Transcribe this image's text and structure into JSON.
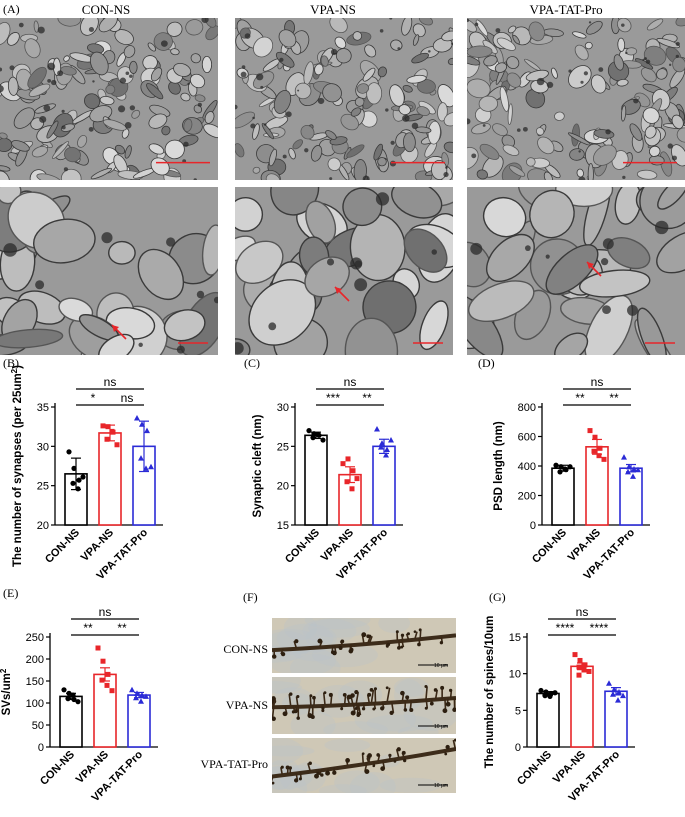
{
  "panel_labels": {
    "A": "(A)",
    "B": "(B)",
    "C": "(C)",
    "D": "(D)",
    "E": "(E)",
    "F": "(F)",
    "G": "(G)"
  },
  "groups": [
    "CON-NS",
    "VPA-NS",
    "VPA-TAT-Pro"
  ],
  "colors": {
    "con": "#000000",
    "vpa": "#e8262a",
    "tat": "#2b2bd6"
  },
  "micrographs": {
    "row1_scale_color": "#e8262a",
    "row2_arrow_color": "#e8262a"
  },
  "light_micrographs": {
    "labels": [
      "CON-NS",
      "VPA-NS",
      "VPA-TAT-Pro"
    ],
    "scale_text": [
      "10 μm",
      "10 μm",
      "10 μm"
    ]
  },
  "chart_data": [
    {
      "id": "B",
      "type": "bar",
      "categories": [
        "CON-NS",
        "VPA-NS",
        "VPA-TAT-Pro"
      ],
      "values": [
        26.5,
        31.7,
        30.0
      ],
      "errors": [
        2.0,
        1.0,
        3.2
      ],
      "points": [
        [
          29.3,
          27.2,
          25.7,
          25.3,
          24.6,
          26.1
        ],
        [
          32.6,
          32.5,
          31.8,
          30.9,
          31.9,
          30.2
        ],
        [
          33.6,
          32.8,
          32.0,
          28.5,
          27.2,
          27.4
        ]
      ],
      "ylabel": "The number of synapses (per 25um",
      "ylabel_sup": "2",
      "ylabel_end": ")",
      "ylim": [
        20,
        35
      ],
      "yticks": [
        20,
        25,
        30,
        35
      ],
      "sig": [
        {
          "from": 0,
          "to": 1,
          "text": "*",
          "level": 1
        },
        {
          "from": 1,
          "to": 2,
          "text": "ns",
          "level": 1
        },
        {
          "from": 0,
          "to": 2,
          "text": "ns",
          "level": 2
        }
      ]
    },
    {
      "id": "C",
      "type": "bar",
      "categories": [
        "CON-NS",
        "VPA-NS",
        "VPA-TAT-Pro"
      ],
      "values": [
        26.4,
        21.4,
        25.0
      ],
      "errors": [
        0.4,
        1.0,
        0.9
      ],
      "points": [
        [
          27.0,
          26.6,
          26.4,
          26.1,
          26.5,
          25.8
        ],
        [
          22.8,
          23.4,
          21.9,
          20.5,
          19.6,
          20.9
        ],
        [
          27.2,
          25.4,
          24.6,
          24.9,
          23.9,
          25.8
        ]
      ],
      "ylabel": "Synaptic cleft (nm)",
      "ylim": [
        15,
        30
      ],
      "yticks": [
        15,
        20,
        25,
        30
      ],
      "sig": [
        {
          "from": 0,
          "to": 1,
          "text": "***",
          "level": 1
        },
        {
          "from": 1,
          "to": 2,
          "text": "**",
          "level": 1
        },
        {
          "from": 0,
          "to": 2,
          "text": "ns",
          "level": 2
        }
      ]
    },
    {
      "id": "D",
      "type": "bar",
      "categories": [
        "CON-NS",
        "VPA-NS",
        "VPA-TAT-Pro"
      ],
      "values": [
        385,
        530,
        385
      ],
      "errors": [
        20,
        50,
        25
      ],
      "points": [
        [
          405,
          395,
          375,
          360,
          380,
          395
        ],
        [
          640,
          595,
          520,
          500,
          470,
          445
        ],
        [
          460,
          395,
          380,
          360,
          330,
          375
        ]
      ],
      "ylabel": "PSD length (nm)",
      "ylim": [
        0,
        800
      ],
      "yticks": [
        0,
        200,
        400,
        600,
        800
      ],
      "sig": [
        {
          "from": 0,
          "to": 1,
          "text": "**",
          "level": 1
        },
        {
          "from": 1,
          "to": 2,
          "text": "**",
          "level": 1
        },
        {
          "from": 0,
          "to": 2,
          "text": "ns",
          "level": 2
        }
      ]
    },
    {
      "id": "E",
      "type": "bar",
      "categories": [
        "CON-NS",
        "VPA-NS",
        "VPA-TAT-Pro"
      ],
      "values": [
        115,
        165,
        118
      ],
      "errors": [
        7,
        15,
        6
      ],
      "points": [
        [
          130,
          122,
          108,
          110,
          118,
          103
        ],
        [
          225,
          195,
          165,
          152,
          140,
          128
        ],
        [
          130,
          122,
          118,
          112,
          104,
          115
        ]
      ],
      "ylabel": "SVs/um",
      "ylabel_sup": "2",
      "ylim": [
        0,
        250
      ],
      "yticks": [
        0,
        50,
        100,
        150,
        200,
        250
      ],
      "sig": [
        {
          "from": 0,
          "to": 1,
          "text": "**",
          "level": 1
        },
        {
          "from": 1,
          "to": 2,
          "text": "**",
          "level": 1
        },
        {
          "from": 0,
          "to": 2,
          "text": "ns",
          "level": 2
        }
      ]
    },
    {
      "id": "G",
      "type": "bar",
      "categories": [
        "CON-NS",
        "VPA-NS",
        "VPA-TAT-Pro"
      ],
      "values": [
        7.3,
        11.0,
        7.6
      ],
      "errors": [
        0.25,
        0.45,
        0.5
      ],
      "points": [
        [
          7.7,
          7.5,
          7.3,
          7.1,
          6.9,
          7.4,
          7.0
        ],
        [
          12.6,
          11.8,
          11.2,
          10.9,
          10.5,
          10.3,
          9.8,
          10.7
        ],
        [
          8.7,
          7.8,
          7.5,
          7.2,
          6.4,
          7.0
        ]
      ],
      "ylabel": "The number of spines/10um",
      "ylim": [
        0,
        15
      ],
      "yticks": [
        0,
        5,
        10,
        15
      ],
      "sig": [
        {
          "from": 0,
          "to": 1,
          "text": "****",
          "level": 1
        },
        {
          "from": 1,
          "to": 2,
          "text": "****",
          "level": 1
        },
        {
          "from": 0,
          "to": 2,
          "text": "ns",
          "level": 2
        }
      ]
    }
  ]
}
